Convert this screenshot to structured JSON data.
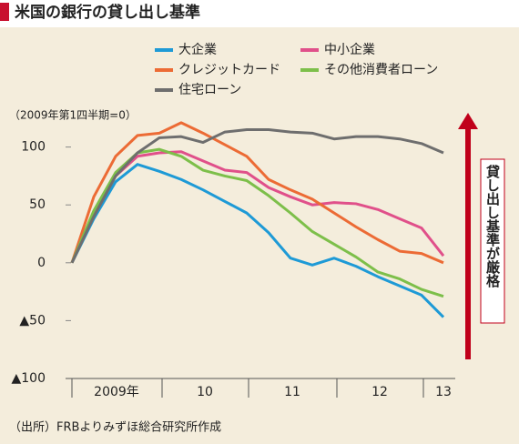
{
  "chart_data": {
    "type": "line",
    "title": "米国の銀行の貸し出し基準",
    "note": "（2009年第1四半期=0）",
    "source": "（出所）FRBよりみずほ総合研究所作成",
    "annotation": "貸し出し基準が厳格",
    "year_labels": [
      "2009年",
      "10",
      "11",
      "12",
      "13"
    ],
    "categories": [
      null,
      null,
      null,
      null,
      null,
      null,
      null,
      null,
      null,
      null,
      null,
      null,
      null,
      null,
      null,
      null,
      null,
      null
    ],
    "ylim": [
      -100,
      128
    ],
    "yticks": [
      100,
      50,
      0,
      {
        "value": -50,
        "label": "▲50"
      },
      {
        "value": -100,
        "label": "▲100"
      }
    ],
    "series": [
      {
        "name": "大企業",
        "color": "#1e9ad6",
        "values": [
          0,
          38,
          70,
          85,
          79,
          72,
          63,
          53,
          43,
          26,
          4,
          -2,
          4,
          -3,
          -12,
          -20,
          -28,
          -47
        ]
      },
      {
        "name": "中小企業",
        "color": "#e0508a",
        "values": [
          0,
          42,
          75,
          92,
          95,
          96,
          88,
          80,
          78,
          65,
          57,
          50,
          52,
          51,
          46,
          38,
          30,
          6
        ]
      },
      {
        "name": "クレジットカード",
        "color": "#ec6b35",
        "values": [
          0,
          57,
          92,
          110,
          112,
          121,
          112,
          102,
          92,
          72,
          63,
          55,
          43,
          31,
          20,
          10,
          8,
          0
        ]
      },
      {
        "name": "その他消費者ローン",
        "color": "#7dbf4a",
        "values": [
          0,
          45,
          78,
          95,
          98,
          92,
          80,
          75,
          71,
          58,
          43,
          27,
          16,
          5,
          -8,
          -14,
          -23,
          -29
        ]
      },
      {
        "name": "住宅ローン",
        "color": "#6e6e6e",
        "values": [
          0,
          40,
          75,
          95,
          108,
          109,
          104,
          113,
          115,
          115,
          113,
          112,
          107,
          109,
          109,
          107,
          103,
          95
        ]
      }
    ]
  }
}
